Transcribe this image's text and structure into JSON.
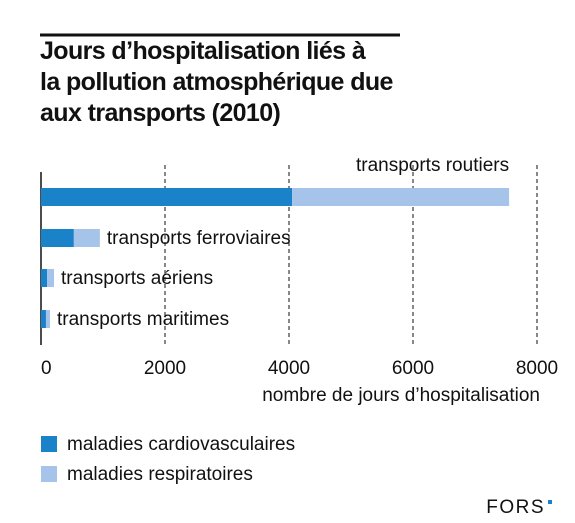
{
  "chart_data": {
    "type": "stacked-barh",
    "title": "Jours d’hospitalisation liés à\nla pollution atmosphérique due\naux transports (2010)",
    "categories": [
      "transports routiers",
      "transports ferroviaires",
      "transports aériens",
      "transports maritimes"
    ],
    "series": [
      {
        "name": "maladies cardiovasculaires",
        "color": "#1a82c8",
        "values": [
          4050,
          530,
          100,
          80
        ]
      },
      {
        "name": "maladies respiratoires",
        "color": "#a6c4ea",
        "values": [
          3500,
          420,
          110,
          65
        ]
      }
    ],
    "xlabel": "nombre de jours d’hospitalisation",
    "xlim": [
      0,
      8000
    ],
    "xticks": [
      0,
      2000,
      4000,
      6000,
      8000
    ],
    "grid": true,
    "logo": "FORS"
  }
}
